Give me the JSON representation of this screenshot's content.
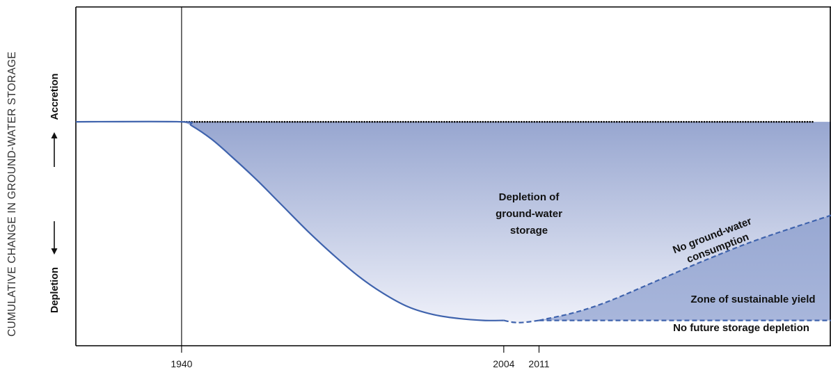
{
  "chart_data": {
    "type": "area",
    "ylabel": "CUMULATIVE CHANGE IN GROUND-WATER STORAGE",
    "y_direction_labels": {
      "up": "Accretion",
      "down": "Depletion"
    },
    "x_ticks": [
      1940,
      2004,
      2011
    ],
    "x_tick_labels": [
      "1940",
      "2004",
      "2011"
    ],
    "x_range": [
      1919,
      2069
    ],
    "y_range": [
      -1.15,
      0.59
    ],
    "series": [
      {
        "name": "",
        "style": "solid",
        "x": [
          1919,
          1940,
          1942,
          1946,
          1950,
          1955,
          1960,
          1965,
          1970,
          1975,
          1980,
          1985,
          1990,
          1995,
          2000,
          2004
        ],
        "y": [
          0,
          0,
          -0.02,
          -0.09,
          -0.18,
          -0.3,
          -0.43,
          -0.56,
          -0.68,
          -0.79,
          -0.88,
          -0.95,
          -0.99,
          -1.01,
          -1.02,
          -1.02
        ]
      },
      {
        "name": "",
        "style": "dashed",
        "x": [
          2004,
          2006,
          2008,
          2011
        ],
        "y": [
          -1.02,
          -1.03,
          -1.03,
          -1.02
        ]
      },
      {
        "name": "No ground-water consumption",
        "style": "dashed",
        "x": [
          2011,
          2018,
          2025,
          2035,
          2045,
          2055,
          2069
        ],
        "y": [
          -1.02,
          -0.98,
          -0.92,
          -0.81,
          -0.7,
          -0.6,
          -0.48
        ]
      },
      {
        "name": "No future storage depletion",
        "style": "dashed",
        "x": [
          2011,
          2069
        ],
        "y": [
          -1.02,
          -1.02
        ]
      },
      {
        "name": "",
        "style": "dotted",
        "x": [
          1940,
          2069
        ],
        "y": [
          0,
          0
        ]
      }
    ],
    "annotations": [
      {
        "text": "Depletion of ground-water storage",
        "lines": [
          "Depletion of",
          "ground-water",
          "storage"
        ]
      },
      {
        "text": "No ground-water consumption",
        "lines": [
          "No ground-water",
          "consumption"
        ]
      },
      {
        "text": "Zone of sustainable yield",
        "lines": [
          "Zone of sustainable yield"
        ]
      },
      {
        "text": "No future storage depletion",
        "lines": [
          "No future storage depletion"
        ]
      }
    ],
    "colors": {
      "line": "#3f63ad",
      "fill_top": "#97a6d0",
      "fill_bottom": "#eef0f9",
      "zone_top": "#98a8d2",
      "zone_bottom": "#a8b6db",
      "axis": "#000000",
      "dotted": "#000000"
    },
    "grid": false,
    "legend": "none"
  }
}
